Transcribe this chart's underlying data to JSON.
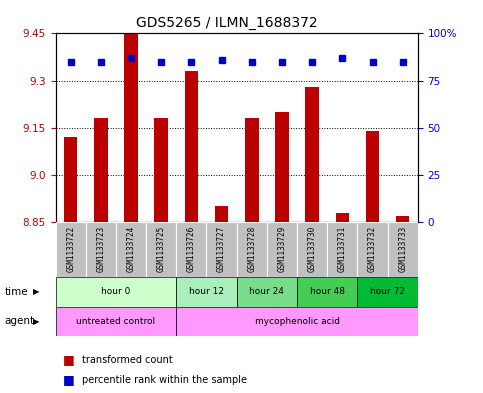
{
  "title": "GDS5265 / ILMN_1688372",
  "samples": [
    "GSM1133722",
    "GSM1133723",
    "GSM1133724",
    "GSM1133725",
    "GSM1133726",
    "GSM1133727",
    "GSM1133728",
    "GSM1133729",
    "GSM1133730",
    "GSM1133731",
    "GSM1133732",
    "GSM1133733"
  ],
  "bar_values": [
    9.12,
    9.18,
    9.46,
    9.18,
    9.33,
    8.9,
    9.18,
    9.2,
    9.28,
    8.88,
    9.14,
    8.87
  ],
  "percentile_values": [
    85,
    85,
    87,
    85,
    85,
    86,
    85,
    85,
    85,
    87,
    85,
    85
  ],
  "bar_bottom": 8.85,
  "ylim_left": [
    8.85,
    9.45
  ],
  "ylim_right": [
    0,
    100
  ],
  "yticks_left": [
    8.85,
    9.0,
    9.15,
    9.3,
    9.45
  ],
  "yticks_right": [
    0,
    25,
    50,
    75,
    100
  ],
  "bar_color": "#BB0000",
  "dot_color": "#0000CC",
  "time_groups": [
    {
      "label": "hour 0",
      "indices": [
        0,
        1,
        2,
        3
      ],
      "color": "#CCFFCC"
    },
    {
      "label": "hour 12",
      "indices": [
        4,
        5
      ],
      "color": "#AAEEBB"
    },
    {
      "label": "hour 24",
      "indices": [
        6,
        7
      ],
      "color": "#77DD88"
    },
    {
      "label": "hour 48",
      "indices": [
        8,
        9
      ],
      "color": "#44CC55"
    },
    {
      "label": "hour 72",
      "indices": [
        10,
        11
      ],
      "color": "#00BB33"
    }
  ],
  "agent_untreated_label": "untreated control",
  "agent_untreated_indices": [
    0,
    1,
    2,
    3
  ],
  "agent_treated_label": "mycophenolic acid",
  "agent_treated_indices": [
    4,
    5,
    6,
    7,
    8,
    9,
    10,
    11
  ],
  "agent_untreated_color": "#FF99FF",
  "agent_treated_color": "#FF99FF",
  "legend_bar_label": "transformed count",
  "legend_dot_label": "percentile rank within the sample",
  "background_color": "#FFFFFF",
  "plot_bg_color": "#FFFFFF",
  "left_label_color": "#BB0000",
  "right_label_color": "#0000CC",
  "sample_bg_color": "#C0C0C0"
}
